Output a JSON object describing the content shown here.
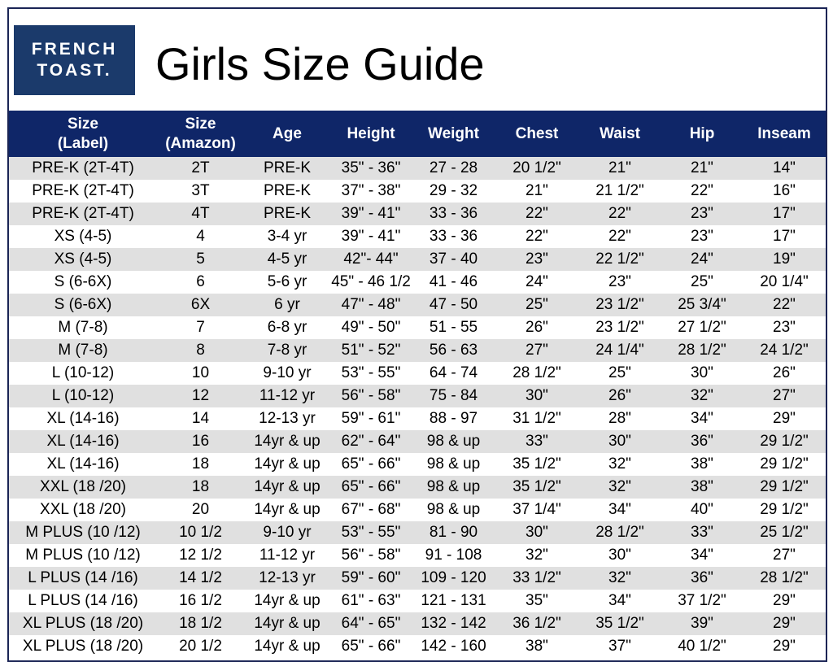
{
  "logo": {
    "line1": "FRENCH",
    "line2": "TOAST.",
    "color": "#1b3a6b"
  },
  "title": "Girls Size Guide",
  "header_color": "#0f2668",
  "columns": [
    {
      "line1": "Size",
      "line2": "(Label)"
    },
    {
      "line1": "Size",
      "line2": "(Amazon)"
    },
    {
      "line1": "Age",
      "line2": ""
    },
    {
      "line1": "Height",
      "line2": ""
    },
    {
      "line1": "Weight",
      "line2": ""
    },
    {
      "line1": "Chest",
      "line2": ""
    },
    {
      "line1": "Waist",
      "line2": ""
    },
    {
      "line1": "Hip",
      "line2": ""
    },
    {
      "line1": "Inseam",
      "line2": ""
    }
  ],
  "rows": [
    [
      "PRE-K (2T-4T)",
      "2T",
      "PRE-K",
      "35\" - 36\"",
      "27 - 28",
      "20 1/2\"",
      "21\"",
      "21\"",
      "14\""
    ],
    [
      "PRE-K (2T-4T)",
      "3T",
      "PRE-K",
      "37\" - 38\"",
      "29 - 32",
      "21\"",
      "21 1/2\"",
      "22\"",
      "16\""
    ],
    [
      "PRE-K (2T-4T)",
      "4T",
      "PRE-K",
      "39\" - 41\"",
      "33 - 36",
      "22\"",
      "22\"",
      "23\"",
      "17\""
    ],
    [
      "XS (4-5)",
      "4",
      "3-4 yr",
      "39\" - 41\"",
      "33 - 36",
      "22\"",
      "22\"",
      "23\"",
      "17\""
    ],
    [
      "XS (4-5)",
      "5",
      "4-5 yr",
      "42\"- 44\"",
      "37 - 40",
      "23\"",
      "22 1/2\"",
      "24\"",
      "19\""
    ],
    [
      "S (6-6X)",
      "6",
      "5-6 yr",
      "45\" - 46 1/2",
      "41 - 46",
      "24\"",
      "23\"",
      "25\"",
      "20 1/4\""
    ],
    [
      "S (6-6X)",
      "6X",
      "6 yr",
      "47\" - 48\"",
      "47 - 50",
      "25\"",
      "23 1/2\"",
      "25 3/4\"",
      "22\""
    ],
    [
      "M (7-8)",
      "7",
      "6-8 yr",
      "49\" - 50\"",
      "51 - 55",
      "26\"",
      "23 1/2\"",
      "27 1/2\"",
      "23\""
    ],
    [
      "M (7-8)",
      "8",
      "7-8 yr",
      "51\" - 52\"",
      "56 - 63",
      "27\"",
      "24 1/4\"",
      "28 1/2\"",
      "24 1/2\""
    ],
    [
      "L (10-12)",
      "10",
      "9-10 yr",
      "53\" - 55\"",
      "64 - 74",
      "28 1/2\"",
      "25\"",
      "30\"",
      "26\""
    ],
    [
      "L (10-12)",
      "12",
      "11-12 yr",
      "56\" - 58\"",
      "75 - 84",
      "30\"",
      "26\"",
      "32\"",
      "27\""
    ],
    [
      "XL (14-16)",
      "14",
      "12-13 yr",
      "59\" - 61\"",
      "88 - 97",
      "31 1/2\"",
      "28\"",
      "34\"",
      "29\""
    ],
    [
      "XL (14-16)",
      "16",
      "14yr & up",
      "62\" - 64\"",
      "98 & up",
      "33\"",
      "30\"",
      "36\"",
      "29 1/2\""
    ],
    [
      "XL (14-16)",
      "18",
      "14yr & up",
      "65\" - 66\"",
      "98 & up",
      "35 1/2\"",
      "32\"",
      "38\"",
      "29 1/2\""
    ],
    [
      "XXL (18 /20)",
      "18",
      "14yr & up",
      "65\" - 66\"",
      "98 & up",
      "35 1/2\"",
      "32\"",
      "38\"",
      "29 1/2\""
    ],
    [
      "XXL (18 /20)",
      "20",
      "14yr & up",
      "67\" - 68\"",
      "98 & up",
      "37 1/4\"",
      "34\"",
      "40\"",
      "29 1/2\""
    ],
    [
      "M PLUS (10 /12)",
      "10 1/2",
      "9-10 yr",
      "53\" - 55\"",
      "81 - 90",
      "30\"",
      "28 1/2\"",
      "33\"",
      "25 1/2\""
    ],
    [
      "M PLUS (10 /12)",
      "12 1/2",
      "11-12 yr",
      "56\" - 58\"",
      "91 - 108",
      "32\"",
      "30\"",
      "34\"",
      "27\""
    ],
    [
      "L PLUS (14 /16)",
      "14 1/2",
      "12-13 yr",
      "59\" - 60\"",
      "109 - 120",
      "33 1/2\"",
      "32\"",
      "36\"",
      "28 1/2\""
    ],
    [
      "L PLUS (14 /16)",
      "16 1/2",
      "14yr & up",
      "61\" - 63\"",
      "121 - 131",
      "35\"",
      "34\"",
      "37 1/2\"",
      "29\""
    ],
    [
      "XL PLUS (18 /20)",
      "18 1/2",
      "14yr & up",
      "64\" - 65\"",
      "132 - 142",
      "36 1/2\"",
      "35 1/2\"",
      "39\"",
      "29\""
    ],
    [
      "XL PLUS (18 /20)",
      "20 1/2",
      "14yr & up",
      "65\" - 66\"",
      "142 - 160",
      "38\"",
      "37\"",
      "40 1/2\"",
      "29\""
    ]
  ]
}
